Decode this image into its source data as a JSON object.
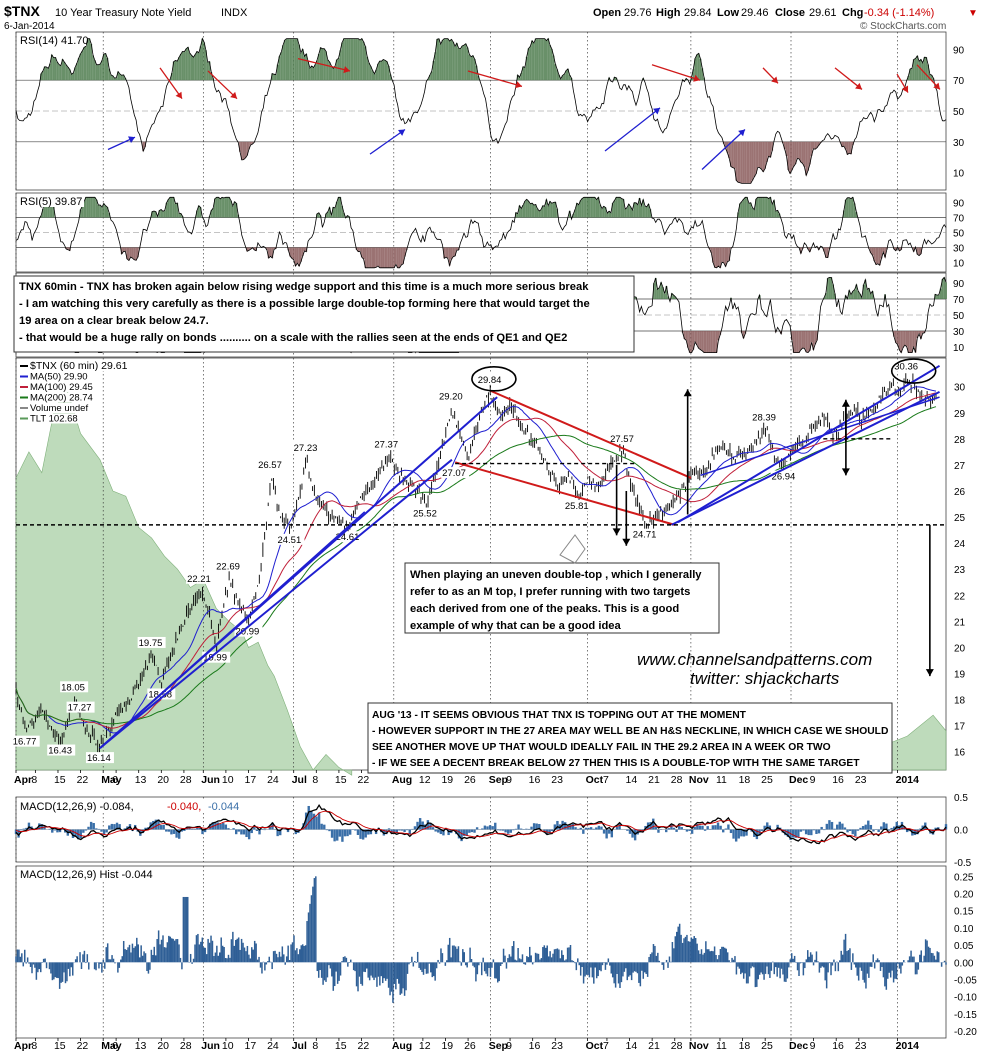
{
  "header": {
    "symbol": "$TNX",
    "name": "10 Year Treasury Note Yield",
    "exchange": "INDX",
    "date": "6-Jan-2014",
    "watermark": "© StockCharts.com",
    "open_label": "Open",
    "open": "29.76",
    "high_label": "High",
    "high": "29.84",
    "low_label": "Low",
    "low": "29.46",
    "close_label": "Close",
    "close": "29.61",
    "chg_label": "Chg",
    "chg": "-0.34 (-1.14%)",
    "chg_arrow": "▼",
    "colors": {
      "down": "#cc0000",
      "text": "#000000"
    }
  },
  "panels": {
    "rsi14": {
      "label": "RSI(14) 41.70",
      "ticks": [
        "90",
        "70",
        "50",
        "30",
        "10"
      ],
      "levels": [
        90,
        70,
        50,
        30,
        10
      ],
      "overbought": 70,
      "oversold": 30,
      "mid": 50
    },
    "rsi5": {
      "label": "RSI(5) 39.87",
      "ticks": [
        "90",
        "70",
        "50",
        "30",
        "10"
      ],
      "levels": [
        90,
        70,
        50,
        30,
        10
      ]
    },
    "rsi3": {
      "ticks": [
        "90",
        "70",
        "50",
        "30",
        "10"
      ],
      "levels": [
        90,
        70,
        50,
        30,
        10
      ]
    },
    "price": {
      "legend": [
        {
          "text": "$TNX (60 min) 29.61",
          "color": "#000000"
        },
        {
          "text": "MA(50) 29.90",
          "color": "#1f1fd0"
        },
        {
          "text": "MA(100) 29.45",
          "color": "#c0203a"
        },
        {
          "text": "MA(200) 28.74",
          "color": "#1a7a1a"
        },
        {
          "text": "Volume undef",
          "color": "#888888"
        },
        {
          "text": "TLT 102.68",
          "color": "#5a9a5a"
        }
      ],
      "ticks": [
        "30",
        "29",
        "28",
        "27",
        "26",
        "25",
        "24",
        "23",
        "22",
        "21",
        "20",
        "19",
        "18",
        "17",
        "16"
      ],
      "tick_values": [
        30,
        29,
        28,
        27,
        26,
        25,
        24,
        23,
        22,
        21,
        20,
        19,
        18,
        17,
        16
      ],
      "ylim": [
        15.3,
        31.1
      ],
      "labels": [
        {
          "t": "18.05",
          "d": 18,
          "v": 18.05
        },
        {
          "t": "17.27",
          "d": 20,
          "v": 17.27
        },
        {
          "t": "16.77",
          "d": 3,
          "v": 16.77
        },
        {
          "t": "16.43",
          "d": 14,
          "v": 16.43
        },
        {
          "t": "16.14",
          "d": 26,
          "v": 16.14
        },
        {
          "t": "19.75",
          "d": 42,
          "v": 19.75
        },
        {
          "t": "18.58",
          "d": 45,
          "v": 18.58
        },
        {
          "t": "22.21",
          "d": 57,
          "v": 22.21
        },
        {
          "t": "22.69",
          "d": 66,
          "v": 22.69
        },
        {
          "t": "19.99",
          "d": 62,
          "v": 19.99
        },
        {
          "t": "20.99",
          "d": 72,
          "v": 20.99
        },
        {
          "t": "26.57",
          "d": 79,
          "v": 26.57
        },
        {
          "t": "27.23",
          "d": 90,
          "v": 27.23
        },
        {
          "t": "24.51",
          "d": 85,
          "v": 24.51
        },
        {
          "t": "24.61",
          "d": 103,
          "v": 24.61
        },
        {
          "t": "27.37",
          "d": 115,
          "v": 27.37
        },
        {
          "t": "25.52",
          "d": 127,
          "v": 25.52
        },
        {
          "t": "29.20",
          "d": 135,
          "v": 29.2
        },
        {
          "t": "29.84",
          "d": 147,
          "v": 29.84
        },
        {
          "t": "27.07",
          "d": 136,
          "v": 27.07
        },
        {
          "t": "27.57",
          "d": 188,
          "v": 27.57
        },
        {
          "t": "25.81",
          "d": 174,
          "v": 25.81
        },
        {
          "t": "24.71",
          "d": 195,
          "v": 24.71
        },
        {
          "t": "28.39",
          "d": 232,
          "v": 28.39
        },
        {
          "t": "26.94",
          "d": 238,
          "v": 26.94
        },
        {
          "t": "30.36",
          "d": 276,
          "v": 30.36
        }
      ],
      "series_points": [
        [
          0,
          18.4
        ],
        [
          3,
          16.8
        ],
        [
          8,
          17.6
        ],
        [
          12,
          16.7
        ],
        [
          14,
          16.45
        ],
        [
          18,
          18.05
        ],
        [
          20,
          17.3
        ],
        [
          24,
          16.6
        ],
        [
          26,
          16.14
        ],
        [
          30,
          17.1
        ],
        [
          34,
          17.8
        ],
        [
          38,
          18.6
        ],
        [
          42,
          19.75
        ],
        [
          45,
          18.6
        ],
        [
          50,
          20.4
        ],
        [
          54,
          21.5
        ],
        [
          57,
          22.2
        ],
        [
          60,
          21.2
        ],
        [
          62,
          20.0
        ],
        [
          66,
          22.7
        ],
        [
          69,
          21.6
        ],
        [
          72,
          21.0
        ],
        [
          75,
          22.5
        ],
        [
          78,
          25.3
        ],
        [
          79,
          26.6
        ],
        [
          82,
          25.0
        ],
        [
          85,
          24.5
        ],
        [
          88,
          26.0
        ],
        [
          90,
          27.2
        ],
        [
          93,
          25.7
        ],
        [
          96,
          25.2
        ],
        [
          100,
          24.9
        ],
        [
          103,
          24.6
        ],
        [
          107,
          25.8
        ],
        [
          111,
          26.4
        ],
        [
          115,
          27.35
        ],
        [
          119,
          26.6
        ],
        [
          123,
          26.2
        ],
        [
          127,
          25.5
        ],
        [
          131,
          27.1
        ],
        [
          135,
          29.2
        ],
        [
          137,
          28.4
        ],
        [
          140,
          27.3
        ],
        [
          143,
          28.6
        ],
        [
          147,
          29.84
        ],
        [
          150,
          28.8
        ],
        [
          153,
          29.3
        ],
        [
          156,
          28.5
        ],
        [
          159,
          28.1
        ],
        [
          162,
          27.6
        ],
        [
          165,
          26.8
        ],
        [
          168,
          26.2
        ],
        [
          171,
          26.6
        ],
        [
          174,
          25.8
        ],
        [
          177,
          26.5
        ],
        [
          180,
          26.2
        ],
        [
          184,
          27.0
        ],
        [
          188,
          27.57
        ],
        [
          191,
          26.0
        ],
        [
          193,
          25.4
        ],
        [
          195,
          24.71
        ],
        [
          198,
          25.0
        ],
        [
          201,
          25.3
        ],
        [
          204,
          25.6
        ],
        [
          207,
          26.2
        ],
        [
          210,
          26.9
        ],
        [
          213,
          26.5
        ],
        [
          216,
          27.4
        ],
        [
          219,
          27.8
        ],
        [
          222,
          27.2
        ],
        [
          226,
          27.5
        ],
        [
          229,
          27.8
        ],
        [
          232,
          28.39
        ],
        [
          235,
          27.4
        ],
        [
          238,
          26.94
        ],
        [
          241,
          27.6
        ],
        [
          244,
          27.9
        ],
        [
          247,
          28.4
        ],
        [
          250,
          28.9
        ],
        [
          253,
          28.1
        ],
        [
          256,
          28.7
        ],
        [
          259,
          29.2
        ],
        [
          262,
          28.8
        ],
        [
          265,
          29.1
        ],
        [
          268,
          29.6
        ],
        [
          271,
          30.0
        ],
        [
          274,
          29.7
        ],
        [
          276,
          30.36
        ],
        [
          279,
          29.9
        ],
        [
          282,
          29.5
        ],
        [
          285,
          29.6
        ]
      ]
    },
    "tlt": {
      "points": [
        [
          0,
          26.5
        ],
        [
          4,
          27.5
        ],
        [
          8,
          26.7
        ],
        [
          12,
          29.2
        ],
        [
          16,
          29.8
        ],
        [
          20,
          28.2
        ],
        [
          26,
          27.2
        ],
        [
          30,
          26.0
        ],
        [
          34,
          25.8
        ],
        [
          38,
          24.6
        ],
        [
          42,
          24.2
        ],
        [
          46,
          23.5
        ],
        [
          50,
          23.0
        ],
        [
          54,
          22.3
        ],
        [
          58,
          22.6
        ],
        [
          62,
          21.5
        ],
        [
          66,
          21.0
        ],
        [
          70,
          20.6
        ],
        [
          72,
          20.0
        ],
        [
          75,
          20.2
        ],
        [
          78,
          19.3
        ],
        [
          80,
          18.9
        ],
        [
          84,
          17.6
        ],
        [
          88,
          16.2
        ],
        [
          92,
          15.3
        ],
        [
          96,
          15.9
        ],
        [
          100,
          15.4
        ],
        [
          104,
          15.1
        ]
      ]
    },
    "macd": {
      "label": "MACD(12,26,9) -0.084, -0.040, -0.044",
      "label_main": "MACD(12,26,9) -0.084,",
      "label_sig": "-0.040,",
      "label_hist": "-0.044",
      "ticks": [
        "0.5",
        "0.0",
        "-0.5"
      ],
      "tick_values": [
        0.5,
        0.0,
        -0.5
      ]
    },
    "macd_hist": {
      "label": "MACD(12,26,9) Hist -0.044",
      "ticks": [
        "0.25",
        "0.20",
        "0.15",
        "0.10",
        "0.05",
        "0.00",
        "-0.05",
        "-0.10",
        "-0.15",
        "-0.20"
      ],
      "tick_values": [
        0.25,
        0.2,
        0.15,
        0.1,
        0.05,
        0.0,
        -0.05,
        -0.1,
        -0.15,
        -0.2
      ]
    }
  },
  "x_axis": {
    "labels": [
      {
        "t": "Apr",
        "d": 0,
        "b": true
      },
      {
        "t": "8",
        "d": 6
      },
      {
        "t": "15",
        "d": 13
      },
      {
        "t": "22",
        "d": 20
      },
      {
        "t": "May",
        "d": 27,
        "b": true
      },
      {
        "t": "6",
        "d": 31
      },
      {
        "t": "13",
        "d": 38
      },
      {
        "t": "20",
        "d": 45
      },
      {
        "t": "28",
        "d": 52
      },
      {
        "t": "Jun",
        "d": 58,
        "b": true
      },
      {
        "t": "10",
        "d": 65
      },
      {
        "t": "17",
        "d": 72
      },
      {
        "t": "24",
        "d": 79
      },
      {
        "t": "Jul",
        "d": 86,
        "b": true
      },
      {
        "t": "8",
        "d": 93
      },
      {
        "t": "15",
        "d": 100
      },
      {
        "t": "22",
        "d": 107
      },
      {
        "t": "Aug",
        "d": 117,
        "b": true
      },
      {
        "t": "12",
        "d": 126
      },
      {
        "t": "19",
        "d": 133
      },
      {
        "t": "26",
        "d": 140
      },
      {
        "t": "Sep",
        "d": 147,
        "b": true
      },
      {
        "t": "9",
        "d": 153
      },
      {
        "t": "16",
        "d": 160
      },
      {
        "t": "23",
        "d": 167
      },
      {
        "t": "Oct",
        "d": 177,
        "b": true
      },
      {
        "t": "7",
        "d": 183
      },
      {
        "t": "14",
        "d": 190
      },
      {
        "t": "21",
        "d": 197
      },
      {
        "t": "28",
        "d": 204
      },
      {
        "t": "Nov",
        "d": 209,
        "b": true
      },
      {
        "t": "11",
        "d": 218
      },
      {
        "t": "18",
        "d": 225
      },
      {
        "t": "25",
        "d": 232
      },
      {
        "t": "Dec",
        "d": 240,
        "b": true
      },
      {
        "t": "9",
        "d": 247
      },
      {
        "t": "16",
        "d": 254
      },
      {
        "t": "23",
        "d": 261
      },
      {
        "t": "2014",
        "d": 273,
        "b": true
      }
    ],
    "domain": [
      0,
      288
    ]
  },
  "annotations": {
    "box1": [
      "TNX 60min - TNX has broken again below rising wedge support and this time is a much more serious break",
      "- I am watching this very carefully as there is a possible large double-top forming here that would target the",
      "19 area on a clear break below 24.7.",
      "- that would be a huge rally on bonds .......... on a scale with the rallies seen at the ends of QE1 and QE2"
    ],
    "box2": [
      "When playing an uneven double-top , which I generally",
      "refer to as an M top, I prefer running with two targets",
      "each derived from one of the peaks. This is a good",
      "example of why that can be a good idea"
    ],
    "box3": [
      "AUG '13 - IT SEEMS OBVIOUS THAT TNX IS TOPPING OUT AT THE MOMENT",
      "- HOWEVER SUPPORT IN THE 27 AREA MAY WELL BE AN H&S NECKLINE, IN WHICH CASE WE SHOULD",
      "SEE ANOTHER MOVE UP THAT WOULD IDEALLY FAIL IN THE 29.2 AREA IN A WEEK OR TWO",
      "- IF WE SEE A DECENT BREAK BELOW 27 THEN THIS IS A DOUBLE-TOP WITH THE SAME TARGET"
    ],
    "url": "www.channelsandpatterns.com",
    "twitter": "twitter: shjackcharts"
  },
  "chart_data": [
    {
      "type": "line",
      "title": "$TNX 10 Year Treasury Note Yield INDX",
      "series": [
        {
          "name": "$TNX (60 min) 29.61"
        },
        {
          "name": "MA(50) 29.90"
        },
        {
          "name": "MA(100) 29.45"
        },
        {
          "name": "MA(200) 28.74"
        },
        {
          "name": "TLT 102.68"
        }
      ],
      "ylim": [
        15.3,
        31.1
      ],
      "x_tick_labels": [
        "Apr",
        "8",
        "15",
        "22",
        "May",
        "6",
        "13",
        "20",
        "28",
        "Jun",
        "10",
        "17",
        "24",
        "Jul",
        "8",
        "15",
        "22",
        "Aug",
        "12",
        "19",
        "26",
        "Sep",
        "9",
        "16",
        "23",
        "Oct",
        "7",
        "14",
        "21",
        "28",
        "Nov",
        "11",
        "18",
        "25",
        "Dec",
        "9",
        "16",
        "23",
        "2014"
      ],
      "y_tick_labels": [
        "16",
        "17",
        "18",
        "19",
        "20",
        "21",
        "22",
        "23",
        "24",
        "25",
        "26",
        "27",
        "28",
        "29",
        "30"
      ],
      "price_labels": [
        "16.77",
        "16.43",
        "16.14",
        "17.27",
        "18.05",
        "18.58",
        "19.75",
        "19.99",
        "20.99",
        "22.21",
        "22.69",
        "24.51",
        "24.61",
        "26.57",
        "27.23",
        "27.37",
        "25.52",
        "29.20",
        "29.84",
        "27.07",
        "27.57",
        "25.81",
        "24.71",
        "28.39",
        "26.94",
        "30.36"
      ]
    },
    {
      "type": "line",
      "title": "RSI(14) 41.70",
      "ylim": [
        0,
        100
      ]
    },
    {
      "type": "line",
      "title": "RSI(5) 39.87",
      "ylim": [
        0,
        100
      ]
    },
    {
      "type": "line",
      "title": "MACD(12,26,9) -0.084, -0.040, -0.044",
      "ylim": [
        -0.5,
        0.5
      ]
    },
    {
      "type": "bar",
      "title": "MACD(12,26,9) Hist -0.044",
      "ylim": [
        -0.2,
        0.25
      ]
    }
  ]
}
